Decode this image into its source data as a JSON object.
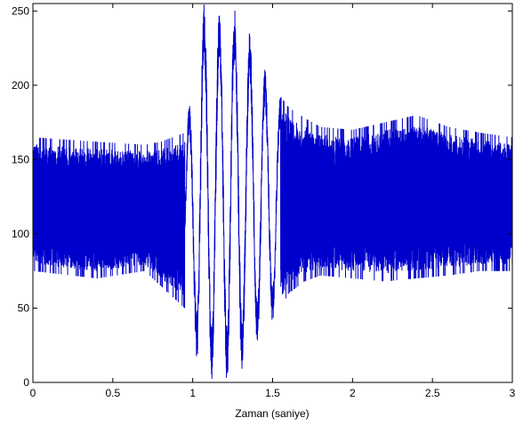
{
  "chart_data": {
    "type": "line",
    "title": "",
    "xlabel": "Zaman (saniye)",
    "ylabel": "",
    "xlim": [
      0,
      3
    ],
    "ylim": [
      0,
      255
    ],
    "xticks": [
      0,
      0.5,
      1,
      1.5,
      2,
      2.5,
      3
    ],
    "xtick_labels": [
      "0",
      "0.5",
      "1",
      "1.5",
      "2",
      "2.5",
      "3"
    ],
    "yticks": [
      0,
      50,
      100,
      150,
      200,
      250
    ],
    "ytick_labels": [
      "0",
      "50",
      "100",
      "150",
      "200",
      "250"
    ],
    "grid": false,
    "line_color": "#0000cc",
    "series": [
      {
        "samples_per_second": 1800,
        "center": 120,
        "envelope": {
          "t": [
            0,
            0.4,
            0.7,
            0.8,
            0.95,
            1.0,
            1.05,
            1.1,
            1.2,
            1.3,
            1.35,
            1.4,
            1.5,
            1.6,
            1.7,
            1.8,
            2.0,
            2.2,
            2.4,
            2.6,
            2.8,
            3.0
          ],
          "max": [
            165,
            162,
            160,
            162,
            168,
            205,
            255,
            255,
            255,
            255,
            240,
            225,
            200,
            185,
            178,
            172,
            170,
            175,
            180,
            172,
            168,
            165
          ],
          "min": [
            75,
            70,
            75,
            65,
            50,
            30,
            0,
            0,
            0,
            0,
            12,
            25,
            40,
            60,
            68,
            72,
            70,
            68,
            70,
            72,
            75,
            75
          ]
        }
      }
    ]
  }
}
